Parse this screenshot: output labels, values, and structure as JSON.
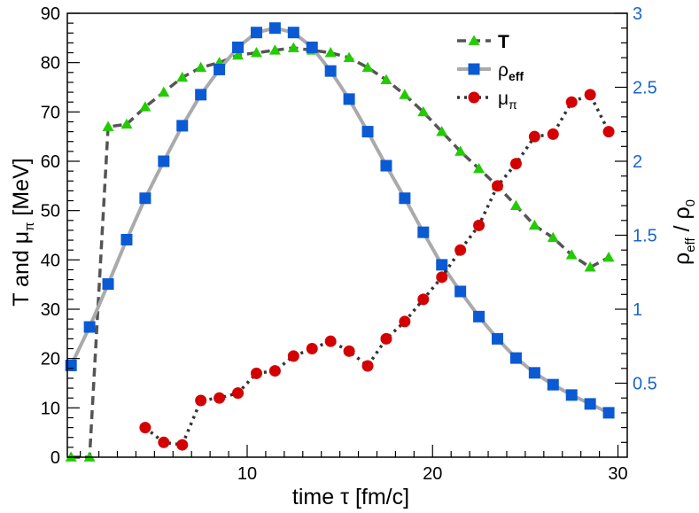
{
  "chart_data": {
    "type": "line",
    "xlabel": {
      "main": "time ",
      "tau": "τ",
      "rest": " [fm/c]"
    },
    "ylabel_left": {
      "pre": "T and ",
      "mu": "μ",
      "sub": "π",
      "post": " [MeV]"
    },
    "ylabel_right": {
      "rho": "ρ",
      "sub_eff": "eff",
      "slash": " / ",
      "rho0": "ρ",
      "sub_0": "0"
    },
    "xlim": [
      0.3,
      30.5
    ],
    "ylim_left": [
      0,
      90
    ],
    "ylim_right": [
      0.0,
      3.0
    ],
    "x_ticks": [
      10,
      20,
      30
    ],
    "y_ticks_left": [
      0,
      10,
      20,
      30,
      40,
      50,
      60,
      70,
      80,
      90
    ],
    "y_ticks_right": [
      0.5,
      1,
      1.5,
      2,
      2.5,
      3
    ],
    "right_axis_color": "#1a66cc",
    "series": [
      {
        "name": "T",
        "label": "T",
        "axis": "left",
        "marker": "triangle",
        "line_style": "dashed",
        "line_color": "#555555",
        "marker_color": "#22cc00",
        "x": [
          0.5,
          1.5,
          2.5,
          3.5,
          4.5,
          5.5,
          6.5,
          7.5,
          8.5,
          9.5,
          10.5,
          11.5,
          12.5,
          13.5,
          14.5,
          15.5,
          16.5,
          17.5,
          18.5,
          19.5,
          20.5,
          21.5,
          22.5,
          23.5,
          24.5,
          25.5,
          26.5,
          27.5,
          28.5,
          29.5
        ],
        "values": [
          0,
          0,
          67,
          67.5,
          71,
          74,
          77,
          79,
          80,
          81.5,
          82,
          82.5,
          83,
          82.5,
          82,
          81,
          79,
          76.5,
          73.5,
          70,
          66,
          62,
          58.5,
          55,
          51,
          47,
          44.5,
          41,
          38.5,
          40.5
        ]
      },
      {
        "name": "rho_eff",
        "label": "ρ",
        "sub": "eff",
        "axis": "right",
        "marker": "square",
        "line_style": "solid",
        "line_color": "#aaaaaa",
        "marker_color": "#0a5ad4",
        "x": [
          0.5,
          1.5,
          2.5,
          3.5,
          4.5,
          5.5,
          6.5,
          7.5,
          8.5,
          9.5,
          10.5,
          11.5,
          12.5,
          13.5,
          14.5,
          15.5,
          16.5,
          17.5,
          18.5,
          19.5,
          20.5,
          21.5,
          22.5,
          23.5,
          24.5,
          25.5,
          26.5,
          27.5,
          28.5,
          29.5
        ],
        "values": [
          0.62,
          0.88,
          1.17,
          1.47,
          1.75,
          2.0,
          2.24,
          2.45,
          2.62,
          2.77,
          2.87,
          2.9,
          2.87,
          2.77,
          2.61,
          2.42,
          2.2,
          1.97,
          1.75,
          1.52,
          1.3,
          1.12,
          0.95,
          0.8,
          0.67,
          0.57,
          0.49,
          0.42,
          0.36,
          0.3
        ]
      },
      {
        "name": "mu_pi",
        "label": "μ",
        "sub": "π",
        "axis": "left",
        "marker": "circle",
        "line_style": "dotted",
        "line_color": "#333333",
        "marker_color": "#d40000",
        "x": [
          4.5,
          5.5,
          6.5,
          7.5,
          8.5,
          9.5,
          10.5,
          11.5,
          12.5,
          13.5,
          14.5,
          15.5,
          16.5,
          17.5,
          18.5,
          19.5,
          20.5,
          21.5,
          22.5,
          23.5,
          24.5,
          25.5,
          26.5,
          27.5,
          28.5,
          29.5
        ],
        "values": [
          6,
          3,
          2.5,
          11.5,
          12,
          13,
          17,
          17.5,
          20.5,
          22,
          23.5,
          21.5,
          18.5,
          24,
          27.5,
          32,
          36.5,
          42,
          47,
          55,
          59.5,
          65,
          65.5,
          72,
          73.5,
          66
        ]
      }
    ],
    "legend_position": "top-right"
  }
}
